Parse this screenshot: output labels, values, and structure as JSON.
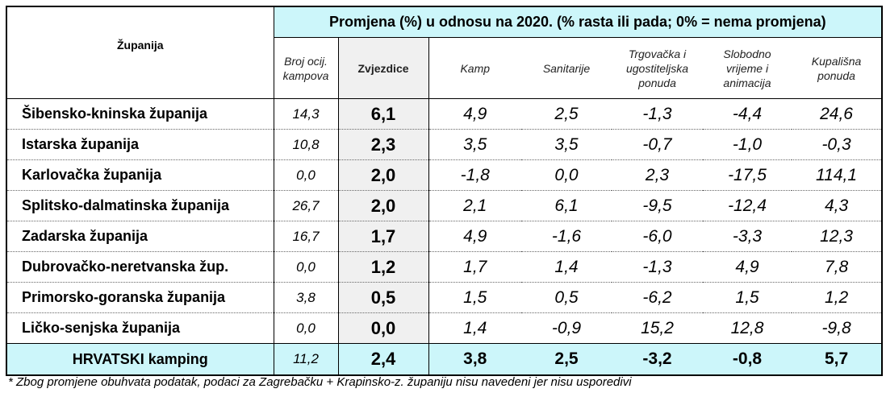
{
  "header": {
    "county_label": "Županija",
    "group_title": "Promjena (%) u odnosu na 2020.  (% rasta ili pada; 0% = nema promjena)",
    "columns": [
      "Broj ocij. kampova",
      "Zvjezdice",
      "Kamp",
      "Sanitarije",
      "Trgovačka i ugostiteljska ponuda",
      "Slobodno vrijeme i animacija",
      "Kupališna ponuda"
    ]
  },
  "rows": [
    {
      "name": "Šibensko-kninska županija",
      "values": [
        "14,3",
        "6,1",
        "4,9",
        "2,5",
        "-1,3",
        "-4,4",
        "24,6"
      ]
    },
    {
      "name": "Istarska županija",
      "values": [
        "10,8",
        "2,3",
        "3,5",
        "3,5",
        "-0,7",
        "-1,0",
        "-0,3"
      ]
    },
    {
      "name": "Karlovačka županija",
      "values": [
        "0,0",
        "2,0",
        "-1,8",
        "0,0",
        "2,3",
        "-17,5",
        "114,1"
      ]
    },
    {
      "name": "Splitsko-dalmatinska županija",
      "values": [
        "26,7",
        "2,0",
        "2,1",
        "6,1",
        "-9,5",
        "-12,4",
        "4,3"
      ]
    },
    {
      "name": "Zadarska županija",
      "values": [
        "16,7",
        "1,7",
        "4,9",
        "-1,6",
        "-6,0",
        "-3,3",
        "12,3"
      ]
    },
    {
      "name": "Dubrovačko-neretvanska žup.",
      "values": [
        "0,0",
        "1,2",
        "1,7",
        "1,4",
        "-1,3",
        "4,9",
        "7,8"
      ]
    },
    {
      "name": "Primorsko-goranska županija",
      "values": [
        "3,8",
        "0,5",
        "1,5",
        "0,5",
        "-6,2",
        "1,5",
        "1,2"
      ]
    },
    {
      "name": "Ličko-senjska županija",
      "values": [
        "0,0",
        "0,0",
        "1,4",
        "-0,9",
        "15,2",
        "12,8",
        "-9,8"
      ]
    }
  ],
  "total": {
    "name": "HRVATSKI kamping",
    "values": [
      "11,2",
      "2,4",
      "3,8",
      "2,5",
      "-3,2",
      "-0,8",
      "5,7"
    ]
  },
  "footnote": "* Zbog promjene obuhvata podatak, podaci za Zagrebačku + Krapinsko-z. županiju nisu navedeni jer nisu usporedivi"
}
